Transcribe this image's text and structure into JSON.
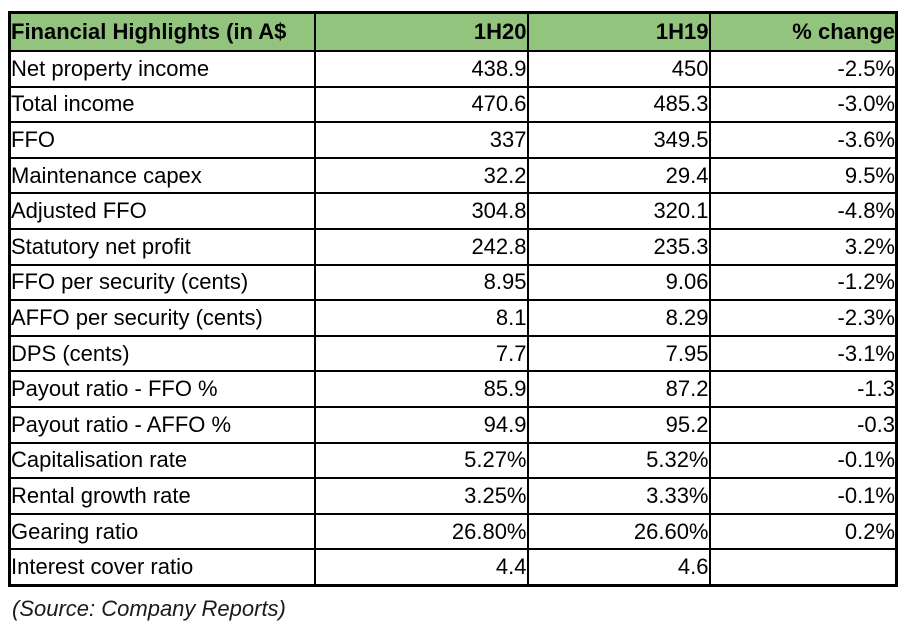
{
  "chart_data": {
    "type": "table",
    "title": "Financial Highlights (in A$",
    "columns": [
      "Financial Highlights (in A$",
      "1H20",
      "1H19",
      "% change"
    ],
    "rows": [
      {
        "label": "Net property income",
        "h1_2020": "438.9",
        "h1_2019": "450",
        "change": "-2.5%"
      },
      {
        "label": "Total income",
        "h1_2020": "470.6",
        "h1_2019": "485.3",
        "change": "-3.0%"
      },
      {
        "label": "FFO",
        "h1_2020": "337",
        "h1_2019": "349.5",
        "change": "-3.6%"
      },
      {
        "label": "Maintenance capex",
        "h1_2020": "32.2",
        "h1_2019": "29.4",
        "change": "9.5%"
      },
      {
        "label": "Adjusted FFO",
        "h1_2020": "304.8",
        "h1_2019": "320.1",
        "change": "-4.8%"
      },
      {
        "label": "Statutory net profit",
        "h1_2020": "242.8",
        "h1_2019": "235.3",
        "change": "3.2%"
      },
      {
        "label": "FFO per security (cents)",
        "h1_2020": "8.95",
        "h1_2019": "9.06",
        "change": "-1.2%"
      },
      {
        "label": "AFFO per security (cents)",
        "h1_2020": "8.1",
        "h1_2019": "8.29",
        "change": "-2.3%"
      },
      {
        "label": "DPS (cents)",
        "h1_2020": "7.7",
        "h1_2019": "7.95",
        "change": "-3.1%"
      },
      {
        "label": "Payout ratio - FFO %",
        "h1_2020": "85.9",
        "h1_2019": "87.2",
        "change": "-1.3"
      },
      {
        "label": "Payout ratio - AFFO %",
        "h1_2020": "94.9",
        "h1_2019": "95.2",
        "change": "-0.3"
      },
      {
        "label": "Capitalisation rate",
        "h1_2020": "5.27%",
        "h1_2019": "5.32%",
        "change": "-0.1%"
      },
      {
        "label": "Rental growth rate",
        "h1_2020": "3.25%",
        "h1_2019": "3.33%",
        "change": "-0.1%"
      },
      {
        "label": "Gearing ratio",
        "h1_2020": "26.80%",
        "h1_2019": "26.60%",
        "change": "0.2%"
      },
      {
        "label": "Interest cover ratio",
        "h1_2020": "4.4",
        "h1_2019": "4.6",
        "change": ""
      }
    ],
    "legend_position": "none",
    "grid": "full-borders"
  },
  "source_note": "(Source: Company Reports)",
  "colors": {
    "header_bg": "#93c47d",
    "border": "#000000",
    "text": "#000000",
    "background": "#ffffff"
  }
}
